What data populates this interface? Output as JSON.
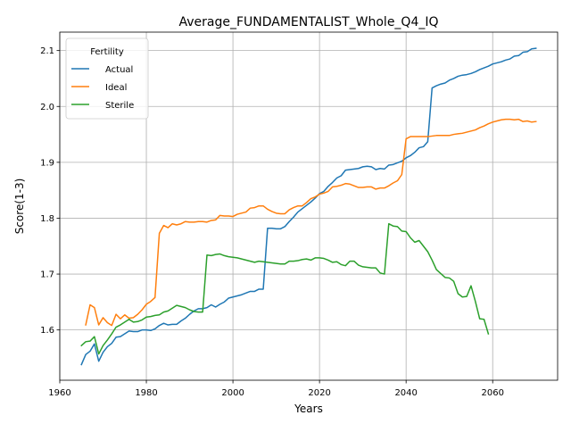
{
  "chart_data": {
    "type": "line",
    "title": "Average_FUNDAMENTALIST_Whole_Q4_IQ",
    "xlabel": "Years",
    "ylabel": "Score(1-3)",
    "xlim": [
      1960,
      2075
    ],
    "ylim": [
      1.51,
      2.133
    ],
    "xticks": [
      1960,
      1980,
      2000,
      2020,
      2040,
      2060
    ],
    "yticks": [
      1.6,
      1.7,
      1.8,
      1.9,
      2.0,
      2.1
    ],
    "xtick_labels": [
      "1960",
      "1980",
      "2000",
      "2020",
      "2040",
      "2060"
    ],
    "ytick_labels": [
      "1.6",
      "1.7",
      "1.8",
      "1.9",
      "2.0",
      "2.1"
    ],
    "grid": true,
    "legend": {
      "title": "Fertility",
      "placement": "top-left"
    },
    "series": [
      {
        "name": "Actual",
        "color": "#1f77b4",
        "points": [
          [
            1965,
            1.538
          ],
          [
            1966,
            1.556
          ],
          [
            1967,
            1.562
          ],
          [
            1968,
            1.575
          ],
          [
            1969,
            1.544
          ],
          [
            1970,
            1.56
          ],
          [
            1971,
            1.57
          ],
          [
            1972,
            1.576
          ],
          [
            1973,
            1.587
          ],
          [
            1974,
            1.588
          ],
          [
            1975,
            1.593
          ],
          [
            1976,
            1.598
          ],
          [
            1977,
            1.597
          ],
          [
            1978,
            1.597
          ],
          [
            1979,
            1.6
          ],
          [
            1980,
            1.6
          ],
          [
            1981,
            1.599
          ],
          [
            1982,
            1.602
          ],
          [
            1983,
            1.608
          ],
          [
            1984,
            1.612
          ],
          [
            1985,
            1.609
          ],
          [
            1986,
            1.61
          ],
          [
            1987,
            1.61
          ],
          [
            1988,
            1.616
          ],
          [
            1989,
            1.621
          ],
          [
            1990,
            1.628
          ],
          [
            1991,
            1.634
          ],
          [
            1992,
            1.638
          ],
          [
            1993,
            1.638
          ],
          [
            1994,
            1.64
          ],
          [
            1995,
            1.645
          ],
          [
            1996,
            1.641
          ],
          [
            1997,
            1.646
          ],
          [
            1998,
            1.65
          ],
          [
            1999,
            1.657
          ],
          [
            2000,
            1.659
          ],
          [
            2001,
            1.661
          ],
          [
            2002,
            1.663
          ],
          [
            2003,
            1.666
          ],
          [
            2004,
            1.669
          ],
          [
            2005,
            1.669
          ],
          [
            2006,
            1.673
          ],
          [
            2007,
            1.673
          ],
          [
            2008,
            1.782
          ],
          [
            2009,
            1.782
          ],
          [
            2010,
            1.781
          ],
          [
            2011,
            1.781
          ],
          [
            2012,
            1.785
          ],
          [
            2013,
            1.794
          ],
          [
            2014,
            1.802
          ],
          [
            2015,
            1.811
          ],
          [
            2016,
            1.817
          ],
          [
            2017,
            1.823
          ],
          [
            2018,
            1.829
          ],
          [
            2019,
            1.836
          ],
          [
            2020,
            1.844
          ],
          [
            2021,
            1.848
          ],
          [
            2022,
            1.857
          ],
          [
            2023,
            1.864
          ],
          [
            2024,
            1.872
          ],
          [
            2025,
            1.876
          ],
          [
            2026,
            1.886
          ],
          [
            2027,
            1.887
          ],
          [
            2028,
            1.888
          ],
          [
            2029,
            1.889
          ],
          [
            2030,
            1.892
          ],
          [
            2031,
            1.893
          ],
          [
            2032,
            1.892
          ],
          [
            2033,
            1.887
          ],
          [
            2034,
            1.889
          ],
          [
            2035,
            1.888
          ],
          [
            2036,
            1.895
          ],
          [
            2037,
            1.896
          ],
          [
            2038,
            1.899
          ],
          [
            2039,
            1.902
          ],
          [
            2040,
            1.908
          ],
          [
            2041,
            1.912
          ],
          [
            2042,
            1.918
          ],
          [
            2043,
            1.926
          ],
          [
            2044,
            1.928
          ],
          [
            2045,
            1.937
          ],
          [
            2046,
            2.033
          ],
          [
            2047,
            2.037
          ],
          [
            2048,
            2.04
          ],
          [
            2049,
            2.042
          ],
          [
            2050,
            2.047
          ],
          [
            2051,
            2.05
          ],
          [
            2052,
            2.054
          ],
          [
            2053,
            2.056
          ],
          [
            2054,
            2.057
          ],
          [
            2055,
            2.059
          ],
          [
            2056,
            2.062
          ],
          [
            2057,
            2.066
          ],
          [
            2058,
            2.069
          ],
          [
            2059,
            2.072
          ],
          [
            2060,
            2.076
          ],
          [
            2061,
            2.078
          ],
          [
            2062,
            2.08
          ],
          [
            2063,
            2.083
          ],
          [
            2064,
            2.085
          ],
          [
            2065,
            2.09
          ],
          [
            2066,
            2.091
          ],
          [
            2067,
            2.097
          ],
          [
            2068,
            2.098
          ],
          [
            2069,
            2.103
          ],
          [
            2070,
            2.104
          ]
        ]
      },
      {
        "name": "Ideal",
        "color": "#ff7f0e",
        "points": [
          [
            1966,
            1.609
          ],
          [
            1967,
            1.645
          ],
          [
            1968,
            1.64
          ],
          [
            1969,
            1.609
          ],
          [
            1970,
            1.622
          ],
          [
            1971,
            1.613
          ],
          [
            1972,
            1.608
          ],
          [
            1973,
            1.628
          ],
          [
            1974,
            1.62
          ],
          [
            1975,
            1.627
          ],
          [
            1976,
            1.621
          ],
          [
            1977,
            1.622
          ],
          [
            1978,
            1.628
          ],
          [
            1979,
            1.636
          ],
          [
            1980,
            1.646
          ],
          [
            1981,
            1.651
          ],
          [
            1982,
            1.658
          ],
          [
            1983,
            1.773
          ],
          [
            1984,
            1.787
          ],
          [
            1985,
            1.783
          ],
          [
            1986,
            1.79
          ],
          [
            1987,
            1.788
          ],
          [
            1988,
            1.79
          ],
          [
            1989,
            1.794
          ],
          [
            1990,
            1.793
          ],
          [
            1991,
            1.793
          ],
          [
            1992,
            1.794
          ],
          [
            1993,
            1.794
          ],
          [
            1994,
            1.793
          ],
          [
            1995,
            1.796
          ],
          [
            1996,
            1.797
          ],
          [
            1997,
            1.805
          ],
          [
            1998,
            1.804
          ],
          [
            1999,
            1.804
          ],
          [
            2000,
            1.803
          ],
          [
            2001,
            1.807
          ],
          [
            2002,
            1.809
          ],
          [
            2003,
            1.811
          ],
          [
            2004,
            1.818
          ],
          [
            2005,
            1.819
          ],
          [
            2006,
            1.822
          ],
          [
            2007,
            1.822
          ],
          [
            2008,
            1.816
          ],
          [
            2009,
            1.812
          ],
          [
            2010,
            1.809
          ],
          [
            2011,
            1.808
          ],
          [
            2012,
            1.808
          ],
          [
            2013,
            1.815
          ],
          [
            2014,
            1.819
          ],
          [
            2015,
            1.822
          ],
          [
            2016,
            1.822
          ],
          [
            2017,
            1.828
          ],
          [
            2018,
            1.835
          ],
          [
            2019,
            1.838
          ],
          [
            2020,
            1.843
          ],
          [
            2021,
            1.845
          ],
          [
            2022,
            1.848
          ],
          [
            2023,
            1.856
          ],
          [
            2024,
            1.857
          ],
          [
            2025,
            1.859
          ],
          [
            2026,
            1.862
          ],
          [
            2027,
            1.861
          ],
          [
            2028,
            1.858
          ],
          [
            2029,
            1.855
          ],
          [
            2030,
            1.855
          ],
          [
            2031,
            1.856
          ],
          [
            2032,
            1.856
          ],
          [
            2033,
            1.852
          ],
          [
            2034,
            1.854
          ],
          [
            2035,
            1.854
          ],
          [
            2036,
            1.858
          ],
          [
            2037,
            1.863
          ],
          [
            2038,
            1.867
          ],
          [
            2039,
            1.878
          ],
          [
            2040,
            1.942
          ],
          [
            2041,
            1.946
          ],
          [
            2042,
            1.946
          ],
          [
            2043,
            1.946
          ],
          [
            2044,
            1.946
          ],
          [
            2045,
            1.946
          ],
          [
            2046,
            1.947
          ],
          [
            2047,
            1.948
          ],
          [
            2048,
            1.948
          ],
          [
            2049,
            1.948
          ],
          [
            2050,
            1.948
          ],
          [
            2051,
            1.95
          ],
          [
            2052,
            1.951
          ],
          [
            2053,
            1.952
          ],
          [
            2054,
            1.954
          ],
          [
            2055,
            1.956
          ],
          [
            2056,
            1.958
          ],
          [
            2057,
            1.962
          ],
          [
            2058,
            1.965
          ],
          [
            2059,
            1.969
          ],
          [
            2060,
            1.972
          ],
          [
            2061,
            1.974
          ],
          [
            2062,
            1.976
          ],
          [
            2063,
            1.977
          ],
          [
            2064,
            1.977
          ],
          [
            2065,
            1.976
          ],
          [
            2066,
            1.977
          ],
          [
            2067,
            1.973
          ],
          [
            2068,
            1.974
          ],
          [
            2069,
            1.972
          ],
          [
            2070,
            1.973
          ]
        ]
      },
      {
        "name": "Sterile",
        "color": "#2ca02c",
        "points": [
          [
            1965,
            1.572
          ],
          [
            1966,
            1.579
          ],
          [
            1967,
            1.58
          ],
          [
            1968,
            1.588
          ],
          [
            1969,
            1.557
          ],
          [
            1970,
            1.572
          ],
          [
            1971,
            1.582
          ],
          [
            1972,
            1.593
          ],
          [
            1973,
            1.605
          ],
          [
            1974,
            1.609
          ],
          [
            1975,
            1.614
          ],
          [
            1976,
            1.619
          ],
          [
            1977,
            1.614
          ],
          [
            1978,
            1.615
          ],
          [
            1979,
            1.618
          ],
          [
            1980,
            1.623
          ],
          [
            1981,
            1.624
          ],
          [
            1982,
            1.626
          ],
          [
            1983,
            1.627
          ],
          [
            1984,
            1.632
          ],
          [
            1985,
            1.634
          ],
          [
            1986,
            1.639
          ],
          [
            1987,
            1.644
          ],
          [
            1988,
            1.642
          ],
          [
            1989,
            1.64
          ],
          [
            1990,
            1.636
          ],
          [
            1991,
            1.633
          ],
          [
            1992,
            1.632
          ],
          [
            1993,
            1.632
          ],
          [
            1994,
            1.734
          ],
          [
            1995,
            1.733
          ],
          [
            1996,
            1.735
          ],
          [
            1997,
            1.736
          ],
          [
            1998,
            1.733
          ],
          [
            1999,
            1.731
          ],
          [
            2000,
            1.73
          ],
          [
            2001,
            1.729
          ],
          [
            2002,
            1.727
          ],
          [
            2003,
            1.725
          ],
          [
            2004,
            1.723
          ],
          [
            2005,
            1.721
          ],
          [
            2006,
            1.723
          ],
          [
            2007,
            1.722
          ],
          [
            2008,
            1.721
          ],
          [
            2009,
            1.72
          ],
          [
            2010,
            1.719
          ],
          [
            2011,
            1.718
          ],
          [
            2012,
            1.718
          ],
          [
            2013,
            1.723
          ],
          [
            2014,
            1.723
          ],
          [
            2015,
            1.724
          ],
          [
            2016,
            1.726
          ],
          [
            2017,
            1.727
          ],
          [
            2018,
            1.725
          ],
          [
            2019,
            1.729
          ],
          [
            2020,
            1.729
          ],
          [
            2021,
            1.728
          ],
          [
            2022,
            1.725
          ],
          [
            2023,
            1.721
          ],
          [
            2024,
            1.722
          ],
          [
            2025,
            1.717
          ],
          [
            2026,
            1.715
          ],
          [
            2027,
            1.723
          ],
          [
            2028,
            1.723
          ],
          [
            2029,
            1.716
          ],
          [
            2030,
            1.713
          ],
          [
            2031,
            1.712
          ],
          [
            2032,
            1.711
          ],
          [
            2033,
            1.711
          ],
          [
            2034,
            1.702
          ],
          [
            2035,
            1.7
          ],
          [
            2036,
            1.79
          ],
          [
            2037,
            1.786
          ],
          [
            2038,
            1.785
          ],
          [
            2039,
            1.777
          ],
          [
            2040,
            1.776
          ],
          [
            2041,
            1.765
          ],
          [
            2042,
            1.757
          ],
          [
            2043,
            1.76
          ],
          [
            2044,
            1.75
          ],
          [
            2045,
            1.74
          ],
          [
            2046,
            1.725
          ],
          [
            2047,
            1.708
          ],
          [
            2048,
            1.701
          ],
          [
            2049,
            1.694
          ],
          [
            2050,
            1.693
          ],
          [
            2051,
            1.687
          ],
          [
            2052,
            1.665
          ],
          [
            2053,
            1.659
          ],
          [
            2054,
            1.66
          ],
          [
            2055,
            1.679
          ],
          [
            2056,
            1.651
          ],
          [
            2057,
            1.62
          ],
          [
            2058,
            1.619
          ],
          [
            2059,
            1.593
          ]
        ]
      }
    ]
  }
}
